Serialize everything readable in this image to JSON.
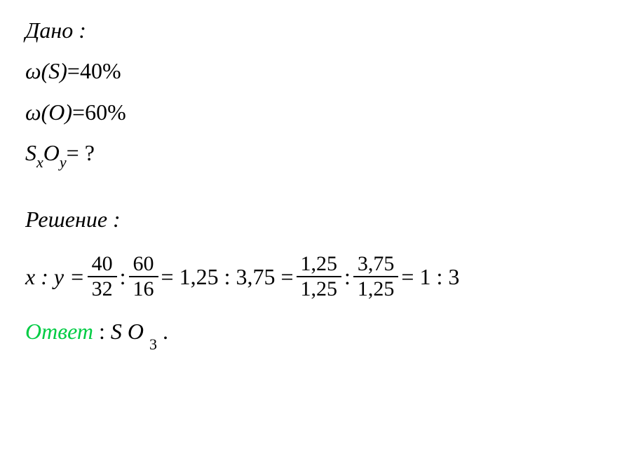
{
  "given": {
    "header": "Дано :",
    "lines": {
      "wS": {
        "label": "ω(S)",
        "eq": " = ",
        "val": "40%"
      },
      "wO": {
        "label": "ω(O)",
        "eq": " = ",
        "val": "60%"
      },
      "unknown": {
        "S": "S",
        "x": "x",
        "O": "O",
        "y": "y",
        "tail": " = ?"
      }
    }
  },
  "solution": {
    "header": "Решение :",
    "eq": {
      "lhs": "x : y = ",
      "f1": {
        "num": "40",
        "den": "32"
      },
      "colon1": " : ",
      "f2": {
        "num": "60",
        "den": "16"
      },
      "mid1": " = 1,25 : 3,75 = ",
      "f3": {
        "num": "1,25",
        "den": "1,25"
      },
      "colon2": " : ",
      "f4": {
        "num": "3,75",
        "den": "1,25"
      },
      "mid2": " = 1 : 3"
    }
  },
  "answer": {
    "label": "Ответ",
    "sep": " : ",
    "formula": {
      "S": "S",
      "O": "O",
      "sub": "3"
    },
    "period": "."
  }
}
